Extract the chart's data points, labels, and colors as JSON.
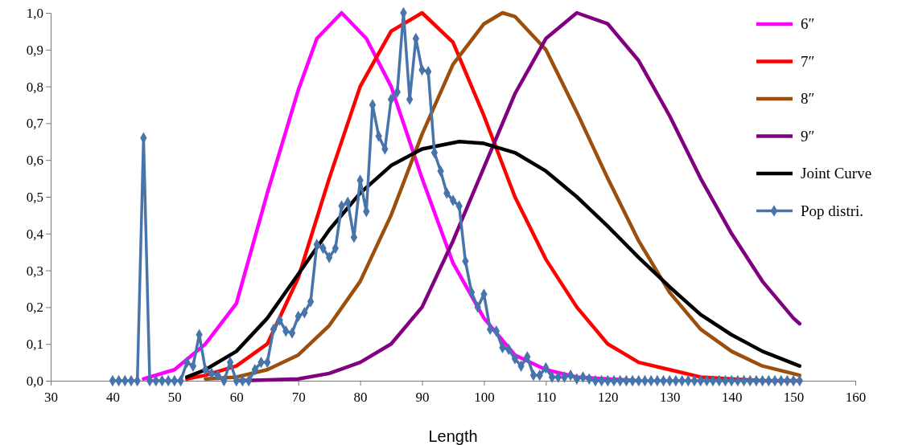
{
  "chart_data": {
    "type": "line",
    "xlabel": "Length",
    "xlim": [
      30,
      160
    ],
    "xticks": [
      30,
      40,
      50,
      60,
      70,
      80,
      90,
      100,
      110,
      120,
      130,
      140,
      150,
      160
    ],
    "ylim": [
      0,
      1
    ],
    "yticks": [
      {
        "value": 0,
        "label": "0,0"
      },
      {
        "value": 0.1,
        "label": "0,1"
      },
      {
        "value": 0.2,
        "label": "0,2"
      },
      {
        "value": 0.3,
        "label": "0,3"
      },
      {
        "value": 0.4,
        "label": "0,4"
      },
      {
        "value": 0.5,
        "label": "0,5"
      },
      {
        "value": 0.6,
        "label": "0,6"
      },
      {
        "value": 0.7,
        "label": "0,7"
      },
      {
        "value": 0.8,
        "label": "0,8"
      },
      {
        "value": 0.9,
        "label": "0,9"
      },
      {
        "value": 1,
        "label": "1,0"
      }
    ],
    "grid": false,
    "legend": "top right",
    "line_style": "solid",
    "series": [
      {
        "name": "6″",
        "color": "#ff00ff",
        "marker": "none",
        "x": [
          45,
          50,
          55,
          60,
          65,
          70,
          73,
          77,
          81,
          85,
          90,
          95,
          100,
          105,
          110,
          115,
          120,
          125
        ],
        "values": [
          0.005,
          0.03,
          0.1,
          0.21,
          0.51,
          0.79,
          0.93,
          1.0,
          0.93,
          0.8,
          0.55,
          0.32,
          0.17,
          0.07,
          0.03,
          0.01,
          0.005,
          0
        ]
      },
      {
        "name": "7″",
        "color": "#ff0000",
        "marker": "none",
        "x": [
          52,
          55,
          60,
          65,
          70,
          75,
          80,
          85,
          90,
          95,
          100,
          105,
          110,
          115,
          120,
          125,
          130,
          135,
          140,
          145,
          151
        ],
        "values": [
          0.005,
          0.015,
          0.04,
          0.1,
          0.28,
          0.55,
          0.8,
          0.95,
          1.0,
          0.92,
          0.72,
          0.5,
          0.33,
          0.2,
          0.1,
          0.05,
          0.03,
          0.01,
          0.005,
          0,
          0
        ]
      },
      {
        "name": "8″",
        "color": "#9c4f0c",
        "marker": "none",
        "x": [
          55,
          60,
          65,
          70,
          75,
          80,
          85,
          90,
          95,
          100,
          103,
          105,
          110,
          115,
          120,
          125,
          130,
          135,
          140,
          145,
          151
        ],
        "values": [
          0.005,
          0.01,
          0.03,
          0.07,
          0.15,
          0.27,
          0.45,
          0.67,
          0.86,
          0.97,
          1.0,
          0.99,
          0.9,
          0.73,
          0.55,
          0.38,
          0.24,
          0.14,
          0.08,
          0.04,
          0.015
        ]
      },
      {
        "name": "9″",
        "color": "#800080",
        "marker": "none",
        "x": [
          60,
          65,
          70,
          75,
          80,
          85,
          90,
          95,
          100,
          105,
          110,
          115,
          120,
          125,
          130,
          135,
          140,
          145,
          150,
          151
        ],
        "values": [
          0,
          0.002,
          0.005,
          0.02,
          0.05,
          0.1,
          0.2,
          0.38,
          0.58,
          0.78,
          0.93,
          1.0,
          0.97,
          0.87,
          0.72,
          0.55,
          0.4,
          0.27,
          0.17,
          0.155
        ]
      },
      {
        "name": "Joint Curve",
        "color": "#000000",
        "marker": "none",
        "x": [
          52,
          55,
          60,
          65,
          70,
          75,
          80,
          85,
          90,
          96,
          100,
          105,
          110,
          115,
          120,
          125,
          130,
          135,
          140,
          145,
          151
        ],
        "values": [
          0.01,
          0.03,
          0.08,
          0.17,
          0.29,
          0.41,
          0.51,
          0.585,
          0.63,
          0.65,
          0.645,
          0.62,
          0.57,
          0.5,
          0.42,
          0.335,
          0.255,
          0.18,
          0.125,
          0.08,
          0.04
        ]
      },
      {
        "name": "Pop distri.",
        "color": "#4774aa",
        "marker": "diamond",
        "x": [
          40,
          41,
          42,
          43,
          44,
          45,
          46,
          47,
          48,
          49,
          50,
          51,
          52,
          53,
          54,
          55,
          56,
          57,
          58,
          59,
          60,
          61,
          62,
          63,
          64,
          65,
          66,
          67,
          68,
          69,
          70,
          71,
          72,
          73,
          74,
          75,
          76,
          77,
          78,
          79,
          80,
          81,
          82,
          83,
          84,
          85,
          86,
          87,
          88,
          89,
          90,
          91,
          92,
          93,
          94,
          95,
          96,
          97,
          98,
          99,
          100,
          101,
          102,
          103,
          104,
          105,
          106,
          107,
          108,
          109,
          110,
          111,
          112,
          113,
          114,
          115,
          116,
          117,
          118,
          119,
          120,
          121,
          122,
          123,
          124,
          125,
          126,
          127,
          128,
          129,
          130,
          131,
          132,
          133,
          134,
          135,
          136,
          137,
          138,
          139,
          140,
          141,
          142,
          143,
          144,
          145,
          146,
          147,
          148,
          149,
          150,
          151
        ],
        "values": [
          0,
          0,
          0,
          0,
          0,
          0.66,
          0,
          0,
          0,
          0,
          0,
          0,
          0.05,
          0.04,
          0.125,
          0.03,
          0.02,
          0.015,
          0,
          0.05,
          0,
          0,
          0,
          0.03,
          0.05,
          0.05,
          0.14,
          0.165,
          0.135,
          0.13,
          0.175,
          0.185,
          0.215,
          0.37,
          0.36,
          0.335,
          0.36,
          0.475,
          0.485,
          0.39,
          0.545,
          0.46,
          0.75,
          0.665,
          0.63,
          0.765,
          0.785,
          1.0,
          0.765,
          0.93,
          0.845,
          0.84,
          0.62,
          0.57,
          0.51,
          0.49,
          0.475,
          0.325,
          0.24,
          0.2,
          0.235,
          0.14,
          0.135,
          0.09,
          0.085,
          0.06,
          0.04,
          0.065,
          0.015,
          0.015,
          0.035,
          0.01,
          0.01,
          0.01,
          0.015,
          0.005,
          0.01,
          0.005,
          0,
          0,
          0,
          0,
          0,
          0,
          0,
          0,
          0,
          0,
          0,
          0,
          0,
          0,
          0,
          0,
          0,
          0,
          0,
          0,
          0,
          0,
          0,
          0,
          0,
          0,
          0,
          0,
          0,
          0,
          0,
          0,
          0,
          0
        ]
      }
    ]
  }
}
